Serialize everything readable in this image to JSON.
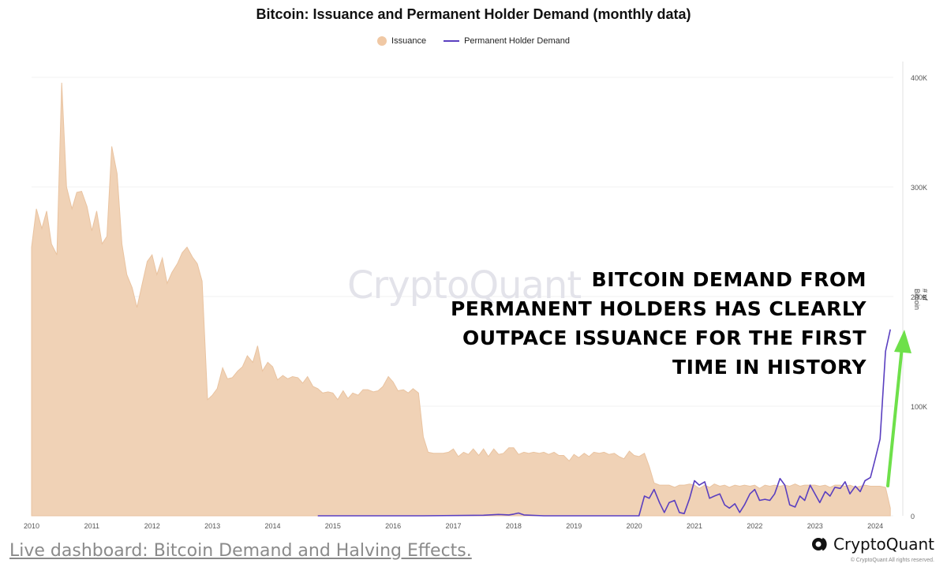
{
  "chart_data": {
    "type": "area",
    "title": "Bitcoin: Issuance and Permanent Holder Demand (monthly data)",
    "ylabel": "# of Bitcoin",
    "ylim": [
      0,
      400000
    ],
    "xlim": [
      2010.0,
      2024.3
    ],
    "yticks": [
      "0",
      "100K",
      "200K",
      "300K",
      "400K"
    ],
    "ytick_values": [
      0,
      100000,
      200000,
      300000,
      400000
    ],
    "xticks": [
      "2010",
      "2011",
      "2012",
      "2013",
      "2014",
      "2015",
      "2016",
      "2017",
      "2018",
      "2019",
      "2020",
      "2021",
      "2022",
      "2023",
      "2024"
    ],
    "legend_position": "top-center",
    "series": [
      {
        "name": "Issuance",
        "style": "area",
        "color": "#f0d2b6",
        "points": [
          [
            2010.0,
            245000
          ],
          [
            2010.08,
            280000
          ],
          [
            2010.17,
            262000
          ],
          [
            2010.25,
            278000
          ],
          [
            2010.33,
            248000
          ],
          [
            2010.42,
            238000
          ],
          [
            2010.5,
            395000
          ],
          [
            2010.58,
            300000
          ],
          [
            2010.67,
            280000
          ],
          [
            2010.75,
            295000
          ],
          [
            2010.83,
            296000
          ],
          [
            2010.92,
            282000
          ],
          [
            2011.0,
            260000
          ],
          [
            2011.08,
            278000
          ],
          [
            2011.17,
            248000
          ],
          [
            2011.25,
            255000
          ],
          [
            2011.33,
            337000
          ],
          [
            2011.42,
            312000
          ],
          [
            2011.5,
            248000
          ],
          [
            2011.58,
            220000
          ],
          [
            2011.67,
            208000
          ],
          [
            2011.75,
            190000
          ],
          [
            2011.83,
            210000
          ],
          [
            2011.92,
            232000
          ],
          [
            2012.0,
            238000
          ],
          [
            2012.08,
            220000
          ],
          [
            2012.17,
            235000
          ],
          [
            2012.25,
            212000
          ],
          [
            2012.33,
            222000
          ],
          [
            2012.42,
            230000
          ],
          [
            2012.5,
            240000
          ],
          [
            2012.58,
            245000
          ],
          [
            2012.67,
            236000
          ],
          [
            2012.75,
            230000
          ],
          [
            2012.83,
            214000
          ],
          [
            2012.92,
            106000
          ],
          [
            2013.0,
            110000
          ],
          [
            2013.08,
            116000
          ],
          [
            2013.17,
            135000
          ],
          [
            2013.25,
            125000
          ],
          [
            2013.33,
            126000
          ],
          [
            2013.42,
            132000
          ],
          [
            2013.5,
            136000
          ],
          [
            2013.58,
            146000
          ],
          [
            2013.67,
            140000
          ],
          [
            2013.75,
            155000
          ],
          [
            2013.83,
            132000
          ],
          [
            2013.92,
            140000
          ],
          [
            2014.0,
            136000
          ],
          [
            2014.08,
            124000
          ],
          [
            2014.17,
            128000
          ],
          [
            2014.25,
            125000
          ],
          [
            2014.33,
            127000
          ],
          [
            2014.42,
            126000
          ],
          [
            2014.5,
            121000
          ],
          [
            2014.58,
            127000
          ],
          [
            2014.67,
            118000
          ],
          [
            2014.75,
            116000
          ],
          [
            2014.83,
            112000
          ],
          [
            2014.92,
            113000
          ],
          [
            2015.0,
            112000
          ],
          [
            2015.08,
            106000
          ],
          [
            2015.17,
            114000
          ],
          [
            2015.25,
            107000
          ],
          [
            2015.33,
            112000
          ],
          [
            2015.42,
            110000
          ],
          [
            2015.5,
            115000
          ],
          [
            2015.58,
            115000
          ],
          [
            2015.67,
            113000
          ],
          [
            2015.75,
            114000
          ],
          [
            2015.83,
            118000
          ],
          [
            2015.92,
            127000
          ],
          [
            2016.0,
            122000
          ],
          [
            2016.08,
            114000
          ],
          [
            2016.17,
            115000
          ],
          [
            2016.25,
            112000
          ],
          [
            2016.33,
            116000
          ],
          [
            2016.42,
            112000
          ],
          [
            2016.5,
            72000
          ],
          [
            2016.58,
            58000
          ],
          [
            2016.67,
            57000
          ],
          [
            2016.75,
            57000
          ],
          [
            2016.83,
            57000
          ],
          [
            2016.92,
            58000
          ],
          [
            2017.0,
            61000
          ],
          [
            2017.08,
            54000
          ],
          [
            2017.17,
            58000
          ],
          [
            2017.25,
            56000
          ],
          [
            2017.33,
            61000
          ],
          [
            2017.42,
            55000
          ],
          [
            2017.5,
            61000
          ],
          [
            2017.58,
            54000
          ],
          [
            2017.67,
            61000
          ],
          [
            2017.75,
            56000
          ],
          [
            2017.83,
            57000
          ],
          [
            2017.92,
            62000
          ],
          [
            2018.0,
            62000
          ],
          [
            2018.08,
            56000
          ],
          [
            2018.17,
            58000
          ],
          [
            2018.25,
            57000
          ],
          [
            2018.33,
            58000
          ],
          [
            2018.42,
            57000
          ],
          [
            2018.5,
            58000
          ],
          [
            2018.58,
            56000
          ],
          [
            2018.67,
            58000
          ],
          [
            2018.75,
            55000
          ],
          [
            2018.83,
            55000
          ],
          [
            2018.92,
            50000
          ],
          [
            2019.0,
            56000
          ],
          [
            2019.08,
            53000
          ],
          [
            2019.17,
            57000
          ],
          [
            2019.25,
            54000
          ],
          [
            2019.33,
            58000
          ],
          [
            2019.42,
            57000
          ],
          [
            2019.5,
            58000
          ],
          [
            2019.58,
            56000
          ],
          [
            2019.67,
            57000
          ],
          [
            2019.75,
            54000
          ],
          [
            2019.83,
            52000
          ],
          [
            2019.92,
            59000
          ],
          [
            2020.0,
            55000
          ],
          [
            2020.08,
            54000
          ],
          [
            2020.17,
            57000
          ],
          [
            2020.25,
            45000
          ],
          [
            2020.33,
            30000
          ],
          [
            2020.42,
            28000
          ],
          [
            2020.5,
            28000
          ],
          [
            2020.58,
            28000
          ],
          [
            2020.67,
            26000
          ],
          [
            2020.75,
            28000
          ],
          [
            2020.83,
            28000
          ],
          [
            2020.92,
            29000
          ],
          [
            2021.0,
            28000
          ],
          [
            2021.08,
            25000
          ],
          [
            2021.17,
            28000
          ],
          [
            2021.25,
            26000
          ],
          [
            2021.33,
            29000
          ],
          [
            2021.42,
            27000
          ],
          [
            2021.5,
            28000
          ],
          [
            2021.58,
            26000
          ],
          [
            2021.67,
            28000
          ],
          [
            2021.75,
            27000
          ],
          [
            2021.83,
            28000
          ],
          [
            2021.92,
            27000
          ],
          [
            2022.0,
            28000
          ],
          [
            2022.08,
            25000
          ],
          [
            2022.17,
            28000
          ],
          [
            2022.25,
            27000
          ],
          [
            2022.33,
            28000
          ],
          [
            2022.42,
            27000
          ],
          [
            2022.5,
            28000
          ],
          [
            2022.58,
            27000
          ],
          [
            2022.67,
            29000
          ],
          [
            2022.75,
            27000
          ],
          [
            2022.83,
            28000
          ],
          [
            2022.92,
            28000
          ],
          [
            2023.0,
            28000
          ],
          [
            2023.08,
            27000
          ],
          [
            2023.17,
            28000
          ],
          [
            2023.25,
            26000
          ],
          [
            2023.33,
            28000
          ],
          [
            2023.42,
            28000
          ],
          [
            2023.5,
            27000
          ],
          [
            2023.58,
            28000
          ],
          [
            2023.67,
            26000
          ],
          [
            2023.75,
            27000
          ],
          [
            2023.83,
            28000
          ],
          [
            2023.92,
            27000
          ],
          [
            2024.0,
            27000
          ],
          [
            2024.08,
            27000
          ],
          [
            2024.17,
            26000
          ],
          [
            2024.25,
            7000
          ]
        ]
      },
      {
        "name": "Permanent Holder Demand",
        "style": "line",
        "color": "#5a3fc0",
        "points": [
          [
            2014.75,
            0
          ],
          [
            2016.5,
            0
          ],
          [
            2017.5,
            500
          ],
          [
            2017.75,
            1200
          ],
          [
            2017.92,
            800
          ],
          [
            2018.0,
            1500
          ],
          [
            2018.08,
            2500
          ],
          [
            2018.17,
            800
          ],
          [
            2018.5,
            0
          ],
          [
            2019.0,
            0
          ],
          [
            2019.5,
            0
          ],
          [
            2020.08,
            0
          ],
          [
            2020.17,
            18000
          ],
          [
            2020.25,
            16000
          ],
          [
            2020.33,
            24000
          ],
          [
            2020.42,
            12000
          ],
          [
            2020.5,
            3000
          ],
          [
            2020.58,
            12000
          ],
          [
            2020.67,
            14000
          ],
          [
            2020.75,
            3000
          ],
          [
            2020.83,
            2000
          ],
          [
            2020.92,
            16000
          ],
          [
            2021.0,
            32000
          ],
          [
            2021.08,
            28000
          ],
          [
            2021.17,
            31000
          ],
          [
            2021.25,
            16000
          ],
          [
            2021.33,
            18000
          ],
          [
            2021.42,
            20000
          ],
          [
            2021.5,
            10000
          ],
          [
            2021.58,
            7000
          ],
          [
            2021.67,
            11000
          ],
          [
            2021.75,
            3000
          ],
          [
            2021.83,
            10000
          ],
          [
            2021.92,
            20000
          ],
          [
            2022.0,
            24000
          ],
          [
            2022.08,
            14000
          ],
          [
            2022.17,
            15000
          ],
          [
            2022.25,
            14000
          ],
          [
            2022.33,
            20000
          ],
          [
            2022.42,
            34000
          ],
          [
            2022.5,
            28000
          ],
          [
            2022.58,
            10000
          ],
          [
            2022.67,
            8000
          ],
          [
            2022.75,
            18000
          ],
          [
            2022.83,
            14000
          ],
          [
            2022.92,
            28000
          ],
          [
            2023.0,
            20000
          ],
          [
            2023.08,
            12000
          ],
          [
            2023.17,
            22000
          ],
          [
            2023.25,
            18000
          ],
          [
            2023.33,
            26000
          ],
          [
            2023.42,
            25000
          ],
          [
            2023.5,
            31000
          ],
          [
            2023.58,
            20000
          ],
          [
            2023.67,
            27000
          ],
          [
            2023.75,
            22000
          ],
          [
            2023.83,
            32000
          ],
          [
            2023.92,
            35000
          ],
          [
            2024.0,
            52000
          ],
          [
            2024.08,
            70000
          ],
          [
            2024.17,
            150000
          ],
          [
            2024.25,
            170000
          ]
        ]
      }
    ]
  },
  "annotation": {
    "text": "BITCOIN DEMAND FROM\nPERMANENT HOLDERS HAS CLEARLY\nOUTPACE ISSUANCE FOR THE FIRST\nTIME IN HISTORY",
    "arrow_color": "#6ee04a"
  },
  "watermark": "CryptoQuant",
  "footer": {
    "link_text": "Live dashboard: Bitcoin Demand and Halving Effects.",
    "brand": "CryptoQuant",
    "copyright": "© CryptoQuant All rights reserved."
  }
}
